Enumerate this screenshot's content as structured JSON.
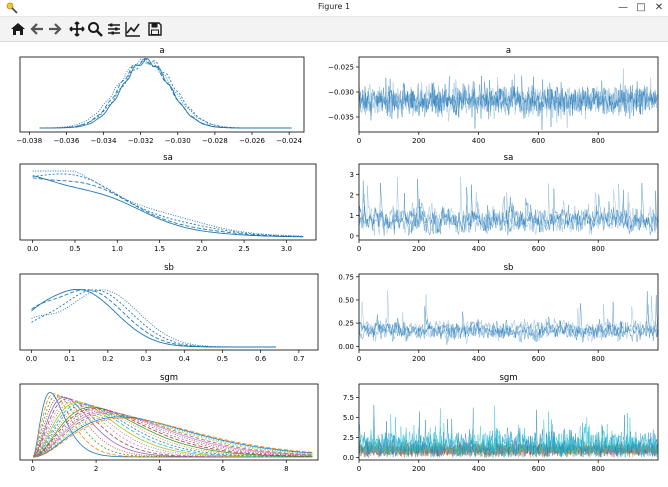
{
  "window": {
    "title": "Figure 1",
    "controls": {
      "minimize": "—",
      "maximize": "□",
      "close": "✕"
    }
  },
  "toolbar": {
    "buttons": [
      {
        "name": "home-icon",
        "tooltip": "Reset original view"
      },
      {
        "name": "back-arrow-icon",
        "tooltip": "Back"
      },
      {
        "name": "forward-arrow-icon",
        "tooltip": "Forward"
      },
      {
        "name": "pan-icon",
        "tooltip": "Pan"
      },
      {
        "name": "zoom-icon",
        "tooltip": "Zoom"
      },
      {
        "name": "subplots-icon",
        "tooltip": "Configure subplots"
      },
      {
        "name": "edit-axis-icon",
        "tooltip": "Edit axis"
      },
      {
        "name": "save-icon",
        "tooltip": "Save the figure"
      }
    ]
  },
  "colors": {
    "series_blue": "#1f77b4",
    "trace_fill": "#7aaed6",
    "multi_palette": [
      "#1f77b4",
      "#ff7f0e",
      "#2ca02c",
      "#d62728",
      "#9467bd",
      "#8c564b",
      "#e377c2",
      "#7f7f7f",
      "#bcbd22",
      "#17becf"
    ]
  },
  "chart_data": [
    {
      "type": "line",
      "title": "a",
      "xticks": [
        "−0.038",
        "−0.036",
        "−0.034",
        "−0.032",
        "−0.030",
        "−0.028",
        "−0.026",
        "−0.024"
      ],
      "xlim": [
        -0.0385,
        -0.0232
      ],
      "yticks": [],
      "series_centers": [
        -0.0317,
        -0.0318,
        -0.0316,
        -0.0318
      ],
      "series_sd": 0.0013
    },
    {
      "type": "line",
      "title": "a",
      "xticks": [
        "0",
        "200",
        "400",
        "600",
        "800"
      ],
      "xlim": [
        0,
        1000
      ],
      "yticks": [
        "−0.025",
        "−0.030",
        "−0.035"
      ],
      "ylim": [
        -0.038,
        -0.023
      ],
      "trace_mean": -0.0317,
      "trace_sd": 0.0014
    },
    {
      "type": "line",
      "title": "sa",
      "xticks": [
        "0.0",
        "0.5",
        "1.0",
        "1.5",
        "2.0",
        "2.5",
        "3.0"
      ],
      "xlim": [
        -0.15,
        3.35
      ],
      "yticks": []
    },
    {
      "type": "line",
      "title": "sa",
      "xticks": [
        "0",
        "200",
        "400",
        "600",
        "800"
      ],
      "xlim": [
        0,
        1000
      ],
      "yticks": [
        "0",
        "1",
        "2",
        "3"
      ],
      "ylim": [
        -0.2,
        3.5
      ],
      "trace_mean": 0.8,
      "trace_max": 3.3
    },
    {
      "type": "line",
      "title": "sb",
      "xticks": [
        "0.0",
        "0.1",
        "0.2",
        "0.3",
        "0.4",
        "0.5",
        "0.6",
        "0.7"
      ],
      "xlim": [
        -0.03,
        0.75
      ],
      "yticks": []
    },
    {
      "type": "line",
      "title": "sb",
      "xticks": [
        "0",
        "200",
        "400",
        "600",
        "800"
      ],
      "xlim": [
        0,
        1000
      ],
      "yticks": [
        "0.00",
        "0.25",
        "0.50",
        "0.75"
      ],
      "ylim": [
        -0.04,
        0.78
      ],
      "trace_mean": 0.18,
      "trace_max": 0.72
    },
    {
      "type": "line",
      "title": "sgm",
      "xticks": [
        "0",
        "2",
        "4",
        "6",
        "8"
      ],
      "xlim": [
        -0.4,
        9.0
      ],
      "yticks": []
    },
    {
      "type": "line",
      "title": "sgm",
      "xticks": [
        "0",
        "200",
        "400",
        "600",
        "800"
      ],
      "xlim": [
        0,
        1000
      ],
      "yticks": [
        "0.0",
        "2.5",
        "5.0",
        "7.5"
      ],
      "ylim": [
        -0.3,
        9.2
      ],
      "trace_mean": 1.3,
      "trace_max": 8.6
    }
  ]
}
